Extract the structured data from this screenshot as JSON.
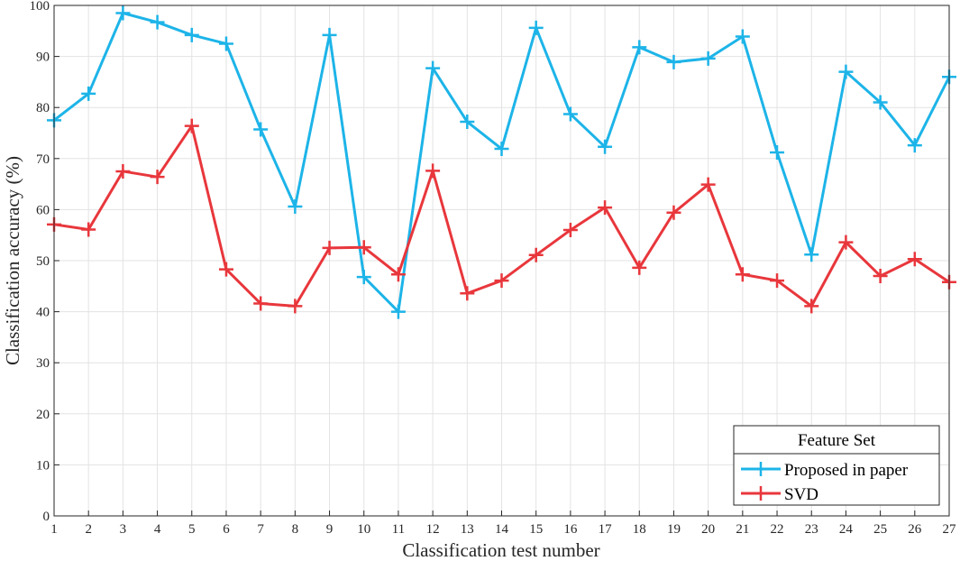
{
  "chart_data": {
    "type": "line",
    "xlabel": "Classification test number",
    "ylabel": "Classification accuracy (%)",
    "x": [
      1,
      2,
      3,
      4,
      5,
      6,
      7,
      8,
      9,
      10,
      11,
      12,
      13,
      14,
      15,
      16,
      17,
      18,
      19,
      20,
      21,
      22,
      23,
      24,
      25,
      26,
      27
    ],
    "xlim": [
      1,
      27
    ],
    "ylim": [
      0,
      100
    ],
    "yticks": [
      0,
      10,
      20,
      30,
      40,
      50,
      60,
      70,
      80,
      90,
      100
    ],
    "grid": true,
    "legend": {
      "title": "Feature Set",
      "placement": "bottom-right"
    },
    "series": [
      {
        "name": "Proposed in paper",
        "color": "#1db4e8",
        "marker": "plus",
        "values": [
          77.5,
          82.7,
          98.5,
          96.7,
          94.2,
          92.5,
          75.7,
          60.6,
          94.2,
          46.8,
          40.0,
          87.7,
          77.2,
          71.9,
          95.6,
          78.7,
          72.3,
          91.8,
          88.9,
          89.6,
          93.9,
          71.2,
          51.2,
          87.0,
          81.0,
          72.6,
          86.0
        ]
      },
      {
        "name": "SVD",
        "color": "#e8373c",
        "marker": "plus",
        "values": [
          57.1,
          56.1,
          67.5,
          66.4,
          76.4,
          48.3,
          41.6,
          41.1,
          52.5,
          52.6,
          47.3,
          67.6,
          43.6,
          46.1,
          51.1,
          56.0,
          60.4,
          48.6,
          59.4,
          64.9,
          47.3,
          46.1,
          41.1,
          53.6,
          47.0,
          50.3,
          45.8
        ]
      }
    ]
  }
}
